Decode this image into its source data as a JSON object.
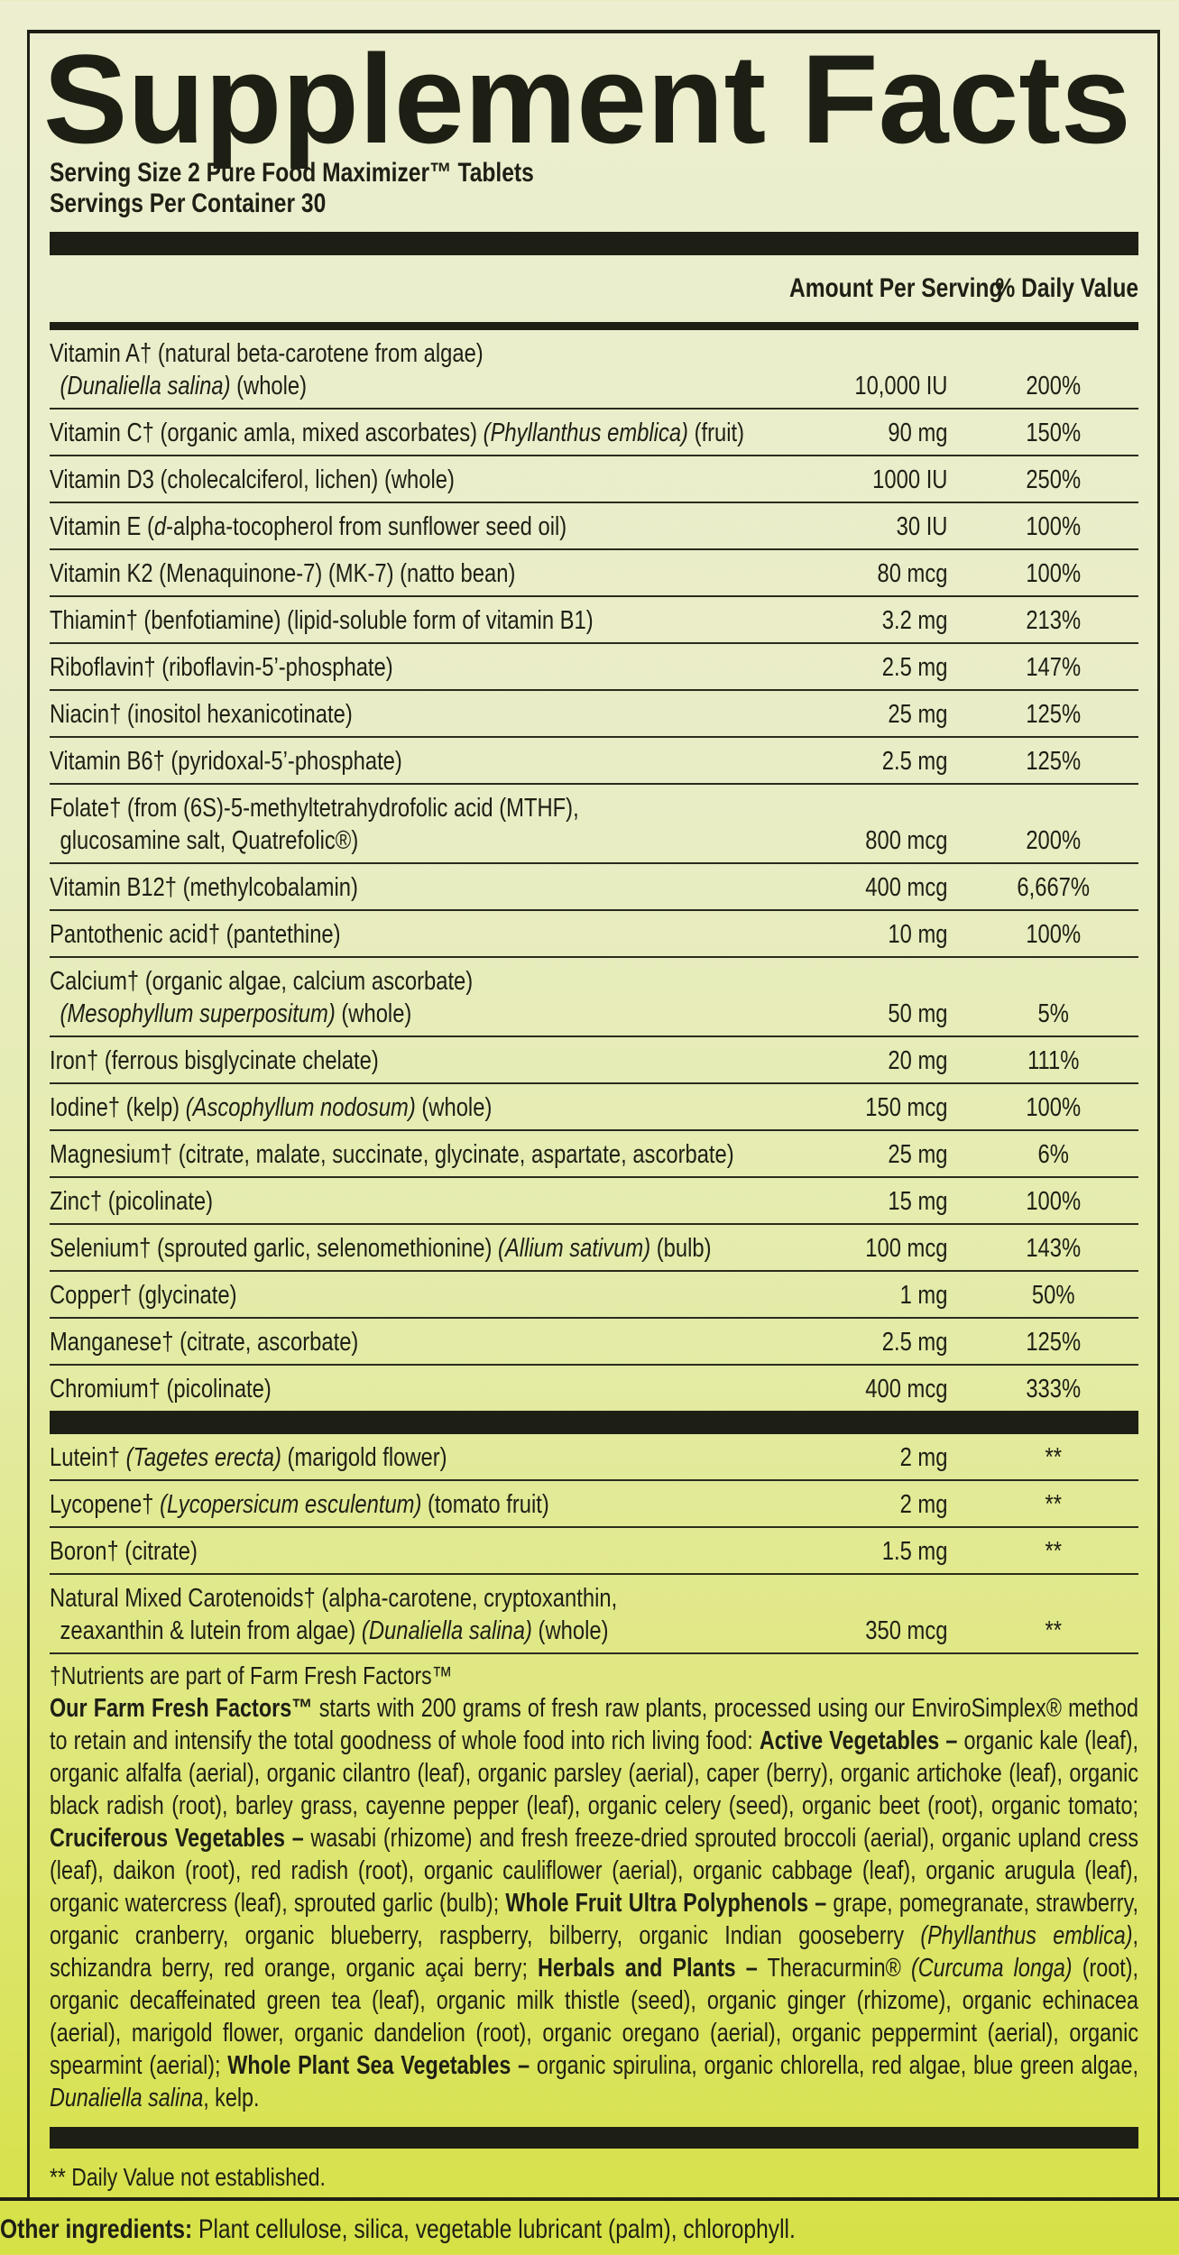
{
  "title": "Supplement Facts",
  "serving_size": "Serving Size 2 Pure Food Maximizer™ Tablets",
  "servings_per_container": "Servings Per Container 30",
  "header": {
    "amount": "Amount Per Serving",
    "dv": "% Daily Value"
  },
  "nutrients": [
    {
      "l1": [
        {
          "t": "Vitamin A† (natural beta-carotene from algae)"
        }
      ],
      "l2": [
        {
          "t": "(Dunaliella salina)",
          "i": true
        },
        {
          "t": " (whole)"
        }
      ],
      "amount": "10,000 IU",
      "dv": "200%"
    },
    {
      "l1": [
        {
          "t": "Vitamin C† (organic amla, mixed ascorbates) "
        },
        {
          "t": "(Phyllanthus emblica)",
          "i": true
        },
        {
          "t": " (fruit)"
        }
      ],
      "amount": "90 mg",
      "dv": "150%"
    },
    {
      "l1": [
        {
          "t": "Vitamin D3 (cholecalciferol, lichen) (whole)"
        }
      ],
      "amount": "1000 IU",
      "dv": "250%"
    },
    {
      "l1": [
        {
          "t": "Vitamin E ("
        },
        {
          "t": "d",
          "i": true
        },
        {
          "t": "-alpha-tocopherol from sunflower seed oil)"
        }
      ],
      "amount": "30 IU",
      "dv": "100%"
    },
    {
      "l1": [
        {
          "t": "Vitamin K2 (Menaquinone-7) (MK-7) (natto bean)"
        }
      ],
      "amount": "80 mcg",
      "dv": "100%"
    },
    {
      "l1": [
        {
          "t": "Thiamin† (benfotiamine) (lipid-soluble form of vitamin B1)"
        }
      ],
      "amount": "3.2 mg",
      "dv": "213%"
    },
    {
      "l1": [
        {
          "t": "Riboflavin† (riboflavin-5’-phosphate)"
        }
      ],
      "amount": "2.5 mg",
      "dv": "147%"
    },
    {
      "l1": [
        {
          "t": "Niacin† (inositol hexanicotinate)"
        }
      ],
      "amount": "25 mg",
      "dv": "125%"
    },
    {
      "l1": [
        {
          "t": "Vitamin B6† (pyridoxal-5’-phosphate)"
        }
      ],
      "amount": "2.5 mg",
      "dv": "125%"
    },
    {
      "l1": [
        {
          "t": "Folate† (from (6S)-5-methyltetrahydrofolic acid (MTHF),"
        }
      ],
      "l2": [
        {
          "t": "glucosamine salt, Quatrefolic®)"
        }
      ],
      "amount": "800 mcg",
      "dv": "200%"
    },
    {
      "l1": [
        {
          "t": "Vitamin B12† (methylcobalamin)"
        }
      ],
      "amount": "400 mcg",
      "dv": "6,667%"
    },
    {
      "l1": [
        {
          "t": "Pantothenic acid† (pantethine)"
        }
      ],
      "amount": "10 mg",
      "dv": "100%"
    },
    {
      "l1": [
        {
          "t": "Calcium† (organic algae, calcium ascorbate)"
        }
      ],
      "l2": [
        {
          "t": "(Mesophyllum superpositum)",
          "i": true
        },
        {
          "t": " (whole)"
        }
      ],
      "amount": "50 mg",
      "dv": "5%"
    },
    {
      "l1": [
        {
          "t": "Iron† (ferrous bisglycinate chelate)"
        }
      ],
      "amount": "20 mg",
      "dv": "111%"
    },
    {
      "l1": [
        {
          "t": "Iodine† (kelp) "
        },
        {
          "t": "(Ascophyllum nodosum)",
          "i": true
        },
        {
          "t": " (whole)"
        }
      ],
      "amount": "150 mcg",
      "dv": "100%"
    },
    {
      "l1": [
        {
          "t": "Magnesium† (citrate, malate, succinate, glycinate, aspartate, ascorbate)"
        }
      ],
      "amount": "25 mg",
      "dv": "6%"
    },
    {
      "l1": [
        {
          "t": "Zinc† (picolinate)"
        }
      ],
      "amount": "15 mg",
      "dv": "100%"
    },
    {
      "l1": [
        {
          "t": "Selenium† (sprouted garlic, selenomethionine) "
        },
        {
          "t": "(Allium sativum)",
          "i": true
        },
        {
          "t": " (bulb)"
        }
      ],
      "amount": "100 mcg",
      "dv": "143%"
    },
    {
      "l1": [
        {
          "t": "Copper† (glycinate)"
        }
      ],
      "amount": "1 mg",
      "dv": "50%"
    },
    {
      "l1": [
        {
          "t": "Manganese† (citrate, ascorbate)"
        }
      ],
      "amount": "2.5 mg",
      "dv": "125%"
    },
    {
      "l1": [
        {
          "t": "Chromium† (picolinate)"
        }
      ],
      "amount": "400 mcg",
      "dv": "333%"
    }
  ],
  "other_nutrients": [
    {
      "l1": [
        {
          "t": "Lutein† "
        },
        {
          "t": "(Tagetes erecta)",
          "i": true
        },
        {
          "t": " (marigold flower)"
        }
      ],
      "amount": "2 mg",
      "dv": "**"
    },
    {
      "l1": [
        {
          "t": "Lycopene† "
        },
        {
          "t": "(Lycopersicum esculentum)",
          "i": true
        },
        {
          "t": " (tomato fruit)"
        }
      ],
      "amount": "2 mg",
      "dv": "**"
    },
    {
      "l1": [
        {
          "t": "Boron† (citrate)"
        }
      ],
      "amount": "1.5 mg",
      "dv": "**"
    },
    {
      "l1": [
        {
          "t": "Natural Mixed Carotenoids† (alpha-carotene, cryptoxanthin,"
        }
      ],
      "l2": [
        {
          "t": "zeaxanthin & lutein from algae) "
        },
        {
          "t": "(Dunaliella salina)",
          "i": true
        },
        {
          "t": " (whole)"
        }
      ],
      "amount": "350 mcg",
      "dv": "**"
    }
  ],
  "footnote_dagger": "†Nutrients are part of Farm Fresh Factors™",
  "description": [
    {
      "t": "Our Farm Fresh Factors™",
      "b": true
    },
    {
      "t": " starts with 200 grams of fresh raw plants, processed using our EnviroSimplex® method to retain and intensify the total goodness of whole food into rich living food: "
    },
    {
      "t": "Active Vegetables –",
      "b": true
    },
    {
      "t": " organic kale (leaf), organic alfalfa (aerial), organic cilantro (leaf), organic parsley (aerial), caper (berry), organic artichoke (leaf), organic black radish (root), barley grass, cayenne pepper (leaf), organic celery (seed), organic beet (root), organic tomato; "
    },
    {
      "t": "Cruciferous Vegetables –",
      "b": true
    },
    {
      "t": " wasabi (rhizome) and fresh freeze-dried sprouted broccoli (aerial), organic upland cress (leaf), daikon (root), red radish (root), organic cauliflower (aerial), organic cabbage (leaf), organic arugula (leaf), organic watercress (leaf), sprouted garlic (bulb); "
    },
    {
      "t": "Whole Fruit Ultra Polyphenols –",
      "b": true
    },
    {
      "t": " grape, pomegranate, strawberry, organic cranberry, organic blueberry, raspberry, bilberry, organic Indian gooseberry "
    },
    {
      "t": "(Phyllanthus emblica)",
      "i": true
    },
    {
      "t": ", schizandra berry, red orange, organic açai berry; "
    },
    {
      "t": "Herbals and Plants –",
      "b": true
    },
    {
      "t": " Theracurmin® "
    },
    {
      "t": "(Curcuma longa)",
      "i": true
    },
    {
      "t": " (root), organic decaffeinated green tea (leaf), organic milk thistle (seed), organic ginger (rhizome), organic echinacea (aerial), marigold flower, organic dandelion (root), organic oregano (aerial), organic peppermint (aerial), organic spearmint (aerial); "
    },
    {
      "t": "Whole Plant Sea Vegetables –",
      "b": true
    },
    {
      "t": " organic spirulina, organic chlorella, red algae, blue green algae, "
    },
    {
      "t": "Dunaliella salina",
      "i": true
    },
    {
      "t": ", kelp."
    }
  ],
  "dv_note": "** Daily Value not established.",
  "other_ingredients": {
    "label": "Other ingredients:",
    "text": " Plant cellulose, silica, vegetable lubricant (palm), chlorophyll."
  }
}
